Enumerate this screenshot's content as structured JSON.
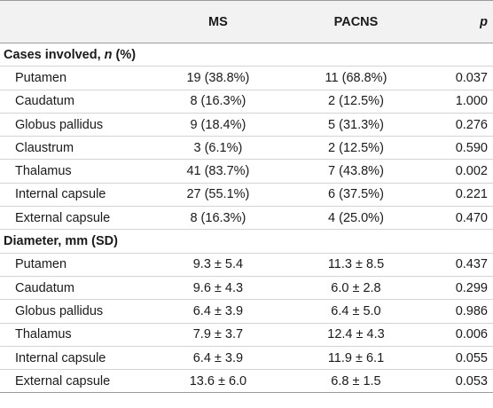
{
  "header": {
    "col0": "",
    "col1": "MS",
    "col2": "PACNS",
    "col3": "p"
  },
  "section1": {
    "title_a": "Cases involved, ",
    "title_n": "n",
    "title_b": " (%)"
  },
  "section1_rows": [
    {
      "label": "Putamen",
      "ms": "19 (38.8%)",
      "pacns": "11 (68.8%)",
      "p": "0.037"
    },
    {
      "label": "Caudatum",
      "ms": "8 (16.3%)",
      "pacns": "2 (12.5%)",
      "p": "1.000"
    },
    {
      "label": "Globus pallidus",
      "ms": "9 (18.4%)",
      "pacns": "5 (31.3%)",
      "p": "0.276"
    },
    {
      "label": "Claustrum",
      "ms": "3 (6.1%)",
      "pacns": "2 (12.5%)",
      "p": "0.590"
    },
    {
      "label": "Thalamus",
      "ms": "41 (83.7%)",
      "pacns": "7 (43.8%)",
      "p": "0.002"
    },
    {
      "label": "Internal capsule",
      "ms": "27 (55.1%)",
      "pacns": "6 (37.5%)",
      "p": "0.221"
    },
    {
      "label": "External capsule",
      "ms": "8 (16.3%)",
      "pacns": "4 (25.0%)",
      "p": "0.470"
    }
  ],
  "section2": {
    "title": "Diameter, mm (SD)"
  },
  "section2_rows": [
    {
      "label": "Putamen",
      "ms": "9.3 ± 5.4",
      "pacns": "11.3 ± 8.5",
      "p": "0.437"
    },
    {
      "label": "Caudatum",
      "ms": "9.6 ± 4.3",
      "pacns": "6.0 ± 2.8",
      "p": "0.299"
    },
    {
      "label": "Globus pallidus",
      "ms": "6.4 ± 3.9",
      "pacns": "6.4 ± 5.0",
      "p": "0.986"
    },
    {
      "label": "Thalamus",
      "ms": "7.9 ± 3.7",
      "pacns": "12.4 ± 4.3",
      "p": "0.006"
    },
    {
      "label": "Internal capsule",
      "ms": "6.4 ± 3.9",
      "pacns": "11.9 ± 6.1",
      "p": "0.055"
    },
    {
      "label": "External capsule",
      "ms": "13.6 ± 6.0",
      "pacns": "6.8 ± 1.5",
      "p": "0.053"
    }
  ]
}
